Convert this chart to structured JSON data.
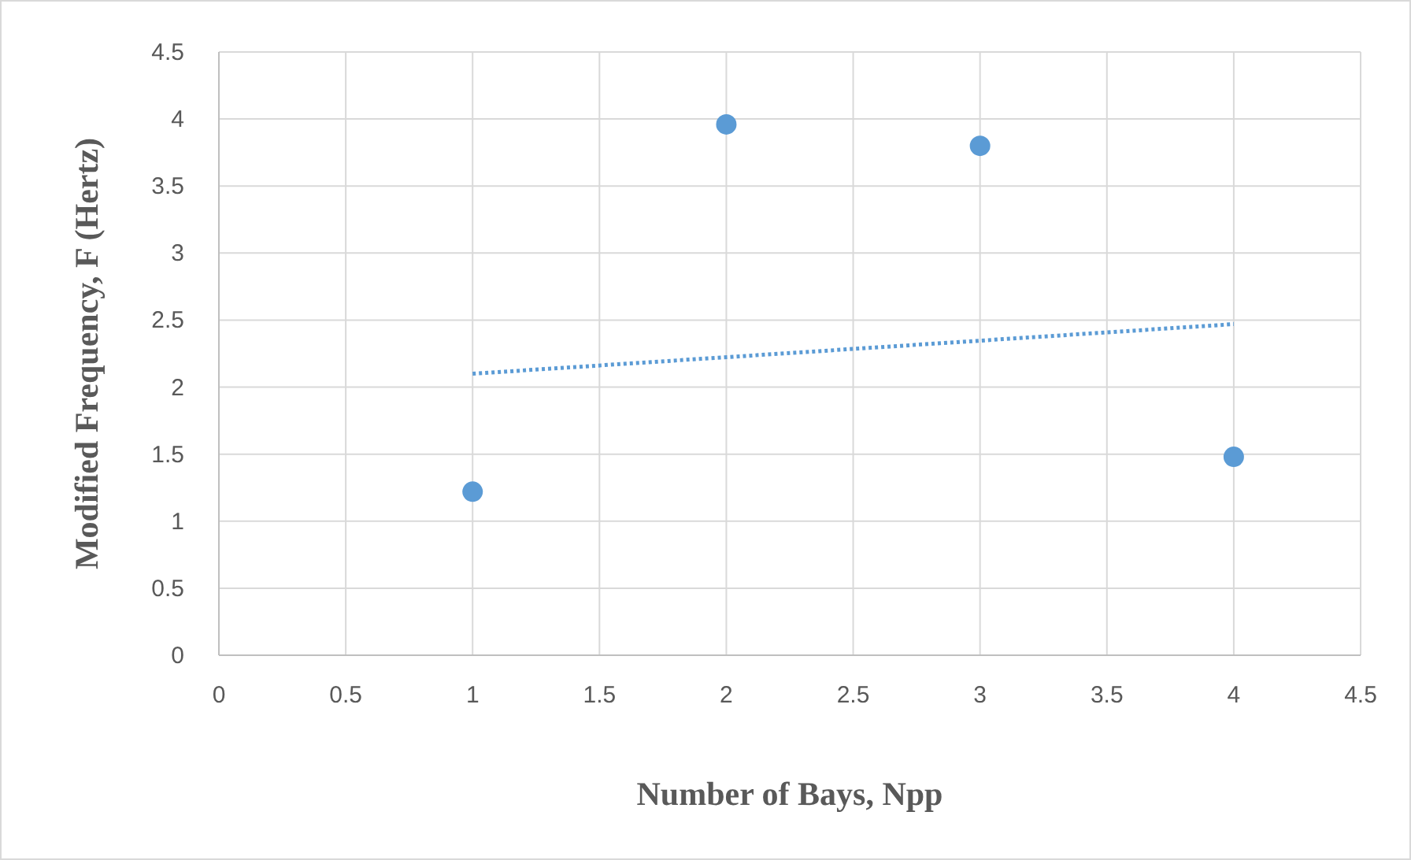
{
  "chart_data": {
    "type": "scatter",
    "xlabel": "Number of Bays, Npp",
    "ylabel": "Modified Frequency, F (Hertz)",
    "xlim": [
      0,
      4.5
    ],
    "ylim": [
      0,
      4.5
    ],
    "xticks": [
      0,
      0.5,
      1,
      1.5,
      2,
      2.5,
      3,
      3.5,
      4,
      4.5
    ],
    "yticks": [
      0,
      0.5,
      1,
      1.5,
      2,
      2.5,
      3,
      3.5,
      4,
      4.5
    ],
    "grid": true,
    "marker": "circle",
    "series": [
      {
        "color": "#5b9bd5",
        "x": [
          1,
          2,
          3,
          4
        ],
        "values": [
          1.22,
          3.96,
          3.8,
          1.48
        ]
      },
      {
        "type": "line",
        "color": "#5b9bd5",
        "line_style": "dotted",
        "marker": "none",
        "x": [
          1,
          4
        ],
        "values": [
          2.1,
          2.47
        ]
      }
    ]
  }
}
